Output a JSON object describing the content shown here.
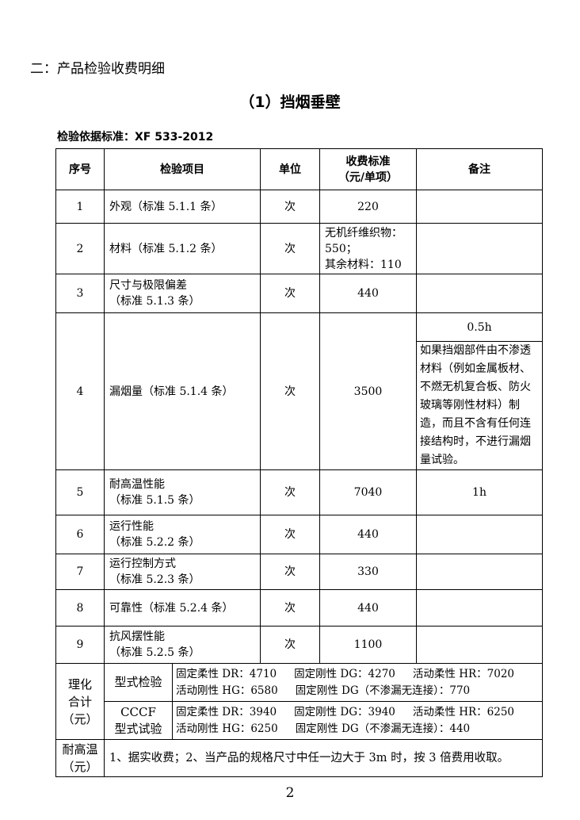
{
  "section_heading": "二：产品检验收费明细",
  "title": "（1）挡烟垂壁",
  "basis": "检验依据标准：XF 533-2012",
  "headers": {
    "no": "序号",
    "item": "检验项目",
    "unit": "单位",
    "fee_l1": "收费标准",
    "fee_l2": "（元/单项）",
    "remark": "备注"
  },
  "rows": [
    {
      "no": "1",
      "item_l1": "外观（标准 5.1.1 条）",
      "item_l2": "",
      "unit": "次",
      "fee": "220",
      "remark": ""
    },
    {
      "no": "2",
      "item_l1": "材料（标准 5.1.2 条）",
      "item_l2": "",
      "unit": "次",
      "fee_l1": "无机纤维织物：",
      "fee_l2": "550；",
      "fee_l3": "其余材料：110",
      "remark": ""
    },
    {
      "no": "3",
      "item_l1": "尺寸与极限偏差",
      "item_l2": "（标准 5.1.3 条）",
      "unit": "次",
      "fee": "440",
      "remark": ""
    },
    {
      "no": "4",
      "item_l1": "漏烟量（标准 5.1.4 条）",
      "item_l2": "",
      "unit": "次",
      "fee": "3500",
      "remark": "0.5h",
      "remark2": "如果挡烟部件由不渗透材料（例如金属板材、不燃无机复合板、防火玻璃等刚性材料）制造，而且不含有任何连接结构时，不进行漏烟量试验。"
    },
    {
      "no": "5",
      "item_l1": "耐高温性能",
      "item_l2": "（标准 5.1.5 条）",
      "unit": "次",
      "fee": "7040",
      "remark": "1h"
    },
    {
      "no": "6",
      "item_l1": "运行性能",
      "item_l2": "（标准 5.2.2 条）",
      "unit": "次",
      "fee": "440",
      "remark": ""
    },
    {
      "no": "7",
      "item_l1": "运行控制方式",
      "item_l2": "（标准 5.2.3 条）",
      "unit": "次",
      "fee": "330",
      "remark": ""
    },
    {
      "no": "8",
      "item_l1": "可靠性（标准 5.2.4 条）",
      "item_l2": "",
      "unit": "次",
      "fee": "440",
      "remark": ""
    },
    {
      "no": "9",
      "item_l1": "抗风摆性能",
      "item_l2": "（标准 5.2.5 条）",
      "unit": "次",
      "fee": "1100",
      "remark": ""
    }
  ],
  "summary": {
    "label_l1": "理化",
    "label_l2": "合计",
    "label_l3": "（元）",
    "type_test": {
      "label": "型式检验",
      "a": "固定柔性 DR：4710",
      "b": "固定刚性 DG：4270",
      "c": "活动柔性 HR：7020",
      "d": "活动刚性 HG：6580",
      "e": "固定刚性 DG（不渗漏无连接）：770"
    },
    "cccf_test": {
      "label_l1": "CCCF",
      "label_l2": "型式试验",
      "a": "固定柔性 DR：3940",
      "b": "固定刚性 DG：3940",
      "c": "活动柔性 HR：6250",
      "d": "活动刚性 HG：6250",
      "e": "固定刚性 DG（不渗漏无连接）：440"
    }
  },
  "fire": {
    "label_l1": "耐高温",
    "label_l2": "（元）",
    "text": "1、据实收费；2、当产品的规格尺寸中任一边大于 3m 时，按 3 倍费用收取。"
  },
  "page_number": "2"
}
